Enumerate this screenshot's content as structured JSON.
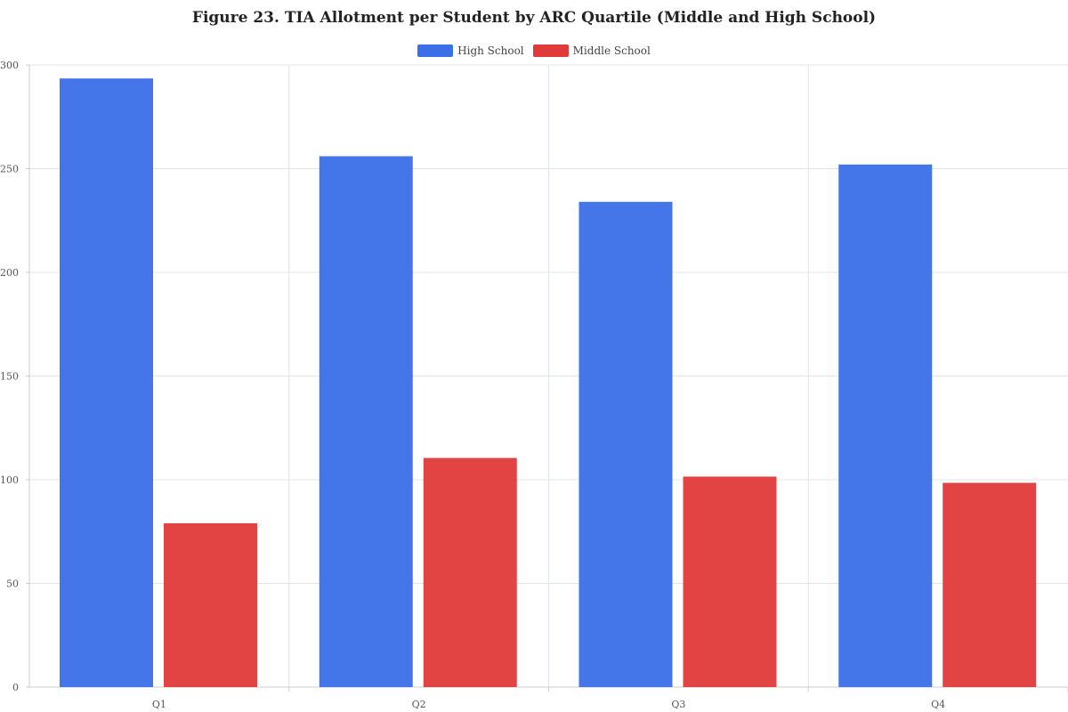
{
  "chart_data": {
    "type": "bar",
    "title": "Figure 23. TIA Allotment per Student by ARC Quartile (Middle and High School)",
    "categories": [
      "Q1",
      "Q2",
      "Q3",
      "Q4"
    ],
    "series": [
      {
        "name": "High School",
        "color": "#3b6fe8",
        "values": [
          293.5,
          256,
          234,
          252
        ]
      },
      {
        "name": "Middle School",
        "color": "#e03a3a",
        "values": [
          79,
          110.5,
          101.5,
          98.5
        ]
      }
    ],
    "xlabel": "",
    "ylabel": "",
    "ylim": [
      0,
      300
    ],
    "yticks": [
      0,
      50,
      100,
      150,
      200,
      250,
      300
    ],
    "grid": true,
    "legend": "top-center"
  }
}
